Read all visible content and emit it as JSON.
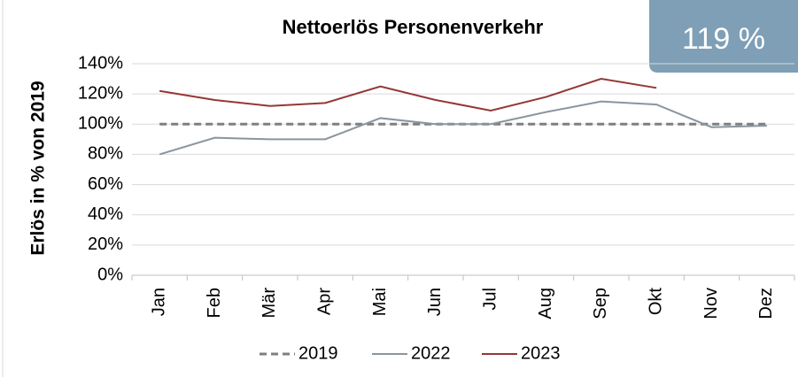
{
  "chart_data": {
    "type": "line",
    "title": "Nettoerlös Personenverkehr",
    "ylabel": "Erlös in % von 2019",
    "badge": "119 %",
    "categories": [
      "Jan",
      "Feb",
      "Mär",
      "Apr",
      "Mai",
      "Jun",
      "Jul",
      "Aug",
      "Sep",
      "Okt",
      "Nov",
      "Dez"
    ],
    "series": [
      {
        "name": "2019",
        "color": "#7f7f7f",
        "dashed": true,
        "values": [
          100,
          100,
          100,
          100,
          100,
          100,
          100,
          100,
          100,
          100,
          100,
          100
        ]
      },
      {
        "name": "2022",
        "color": "#8a959c",
        "dashed": false,
        "values": [
          80,
          91,
          90,
          90,
          104,
          100,
          100,
          108,
          115,
          113,
          98,
          99
        ]
      },
      {
        "name": "2023",
        "color": "#953735",
        "dashed": false,
        "values": [
          122,
          116,
          112,
          114,
          125,
          116,
          109,
          118,
          130,
          124,
          null,
          null
        ]
      }
    ],
    "ylim": [
      0,
      140
    ],
    "yticks": [
      {
        "value": 0,
        "label": "0%"
      },
      {
        "value": 20,
        "label": "20%"
      },
      {
        "value": 40,
        "label": "40%"
      },
      {
        "value": 60,
        "label": "60%"
      },
      {
        "value": 80,
        "label": "80%"
      },
      {
        "value": 100,
        "label": "100%"
      },
      {
        "value": 120,
        "label": "120%"
      },
      {
        "value": 140,
        "label": "140%"
      }
    ],
    "grid": true
  }
}
